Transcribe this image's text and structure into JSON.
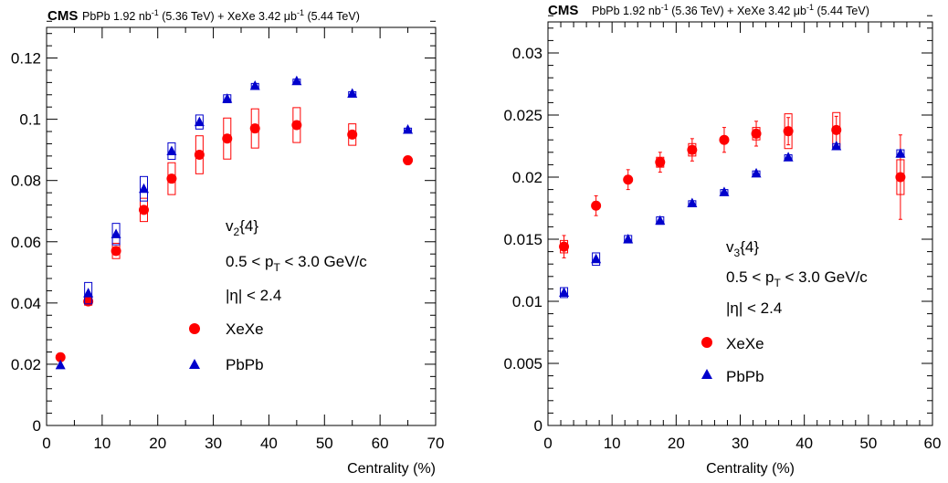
{
  "chart_data": [
    {
      "type": "scatter",
      "header": {
        "experiment": "CMS",
        "text": "PbPb 1.92 nb-1 (5.36 TeV) + XeXe 3.42 μb-1 (5.44 TeV)",
        "pb_lumi": "PbPb 1.92 nb",
        "pb_energy": " (5.36 TeV) + XeXe 3.42 ",
        "xe_unit": "μb",
        "xe_energy": " (5.44 TeV)",
        "exp": "-1"
      },
      "xlabel": "Centrality (%)",
      "ylabel": "",
      "xlim": [
        0,
        70
      ],
      "ylim": [
        0,
        0.13
      ],
      "xticks": [
        0,
        10,
        20,
        30,
        40,
        50,
        60,
        70
      ],
      "xtick_labels": [
        "0",
        "10",
        "20",
        "30",
        "40",
        "50",
        "60",
        "70"
      ],
      "yticks": [
        0,
        0.02,
        0.04,
        0.06,
        0.08,
        0.1,
        0.12
      ],
      "ytick_labels": [
        "0",
        "0.02",
        "0.04",
        "0.06",
        "0.08",
        "0.1",
        "0.12"
      ],
      "annotations": {
        "observable": "v2{4}",
        "observable_base": "v",
        "observable_sub": "2",
        "observable_rest": "{4}",
        "pt_cut": "0.5 < pT < 3.0 GeV/c",
        "pt_pre": "0.5 < p",
        "pt_sub": "T",
        "pt_post": " < 3.0 GeV/c",
        "eta_cut": "|η| < 2.4"
      },
      "legend": [
        {
          "label": "XeXe",
          "marker": "circle",
          "color": "#ff0000"
        },
        {
          "label": "PbPb",
          "marker": "triangle",
          "color": "#0000cc"
        }
      ],
      "series": [
        {
          "name": "XeXe",
          "color": "#ff0000",
          "marker": "circle",
          "x": [
            2.5,
            7.5,
            12.5,
            17.5,
            22.5,
            27.5,
            32.5,
            37.5,
            45,
            55,
            65
          ],
          "y": [
            0.0223,
            0.0405,
            0.057,
            0.0704,
            0.0806,
            0.0884,
            0.0937,
            0.097,
            0.0981,
            0.095,
            0.0866
          ],
          "sys": [
            0,
            0.0012,
            0.0025,
            0.0038,
            0.0052,
            0.0062,
            0.0067,
            0.0064,
            0.0057,
            0.0035,
            0
          ],
          "stat": [
            0,
            0,
            0,
            0,
            0,
            0,
            0,
            0,
            0,
            0,
            0
          ]
        },
        {
          "name": "PbPb",
          "color": "#0000cc",
          "marker": "triangle",
          "x": [
            2.5,
            7.5,
            12.5,
            17.5,
            22.5,
            27.5,
            32.5,
            37.5,
            45,
            55,
            65
          ],
          "y": [
            0.0197,
            0.0432,
            0.0625,
            0.0773,
            0.0896,
            0.0991,
            0.1067,
            0.1109,
            0.1125,
            0.1084,
            0.0966
          ],
          "sys": [
            0,
            0.0035,
            0.0035,
            0.004,
            0.0027,
            0.0023,
            0.0013,
            0.0008,
            0.0006,
            0.0006,
            0.0005
          ],
          "stat": [
            0,
            0,
            0,
            0,
            0,
            0,
            0,
            0,
            0,
            0,
            0
          ]
        }
      ]
    },
    {
      "type": "scatter",
      "header": {
        "experiment": "CMS",
        "text": "PbPb 1.92 nb-1 (5.36 TeV) + XeXe 3.42 μb-1 (5.44 TeV)",
        "pb_lumi": "PbPb 1.92 nb",
        "pb_energy": " (5.36 TeV) + XeXe 3.42 ",
        "xe_unit": "μb",
        "xe_energy": " (5.44 TeV)",
        "exp": "-1"
      },
      "xlabel": "Centrality (%)",
      "ylabel": "",
      "xlim": [
        0,
        60
      ],
      "ylim": [
        0,
        0.0325
      ],
      "xticks": [
        0,
        10,
        20,
        30,
        40,
        50,
        60
      ],
      "xtick_labels": [
        "0",
        "10",
        "20",
        "30",
        "40",
        "50",
        "60"
      ],
      "yticks": [
        0,
        0.005,
        0.01,
        0.015,
        0.02,
        0.025,
        0.03
      ],
      "ytick_labels": [
        "0",
        "0.005",
        "0.01",
        "0.015",
        "0.02",
        "0.025",
        "0.03"
      ],
      "annotations": {
        "observable": "v3{4}",
        "observable_base": "v",
        "observable_sub": "3",
        "observable_rest": "{4}",
        "pt_cut": "0.5 < pT < 3.0 GeV/c",
        "pt_pre": "0.5 < p",
        "pt_sub": "T",
        "pt_post": " < 3.0 GeV/c",
        "eta_cut": "|η| < 2.4"
      },
      "legend": [
        {
          "label": "XeXe",
          "marker": "circle",
          "color": "#ff0000"
        },
        {
          "label": "PbPb",
          "marker": "triangle",
          "color": "#0000cc"
        }
      ],
      "series": [
        {
          "name": "XeXe",
          "color": "#ff0000",
          "marker": "circle",
          "x": [
            2.5,
            7.5,
            12.5,
            17.5,
            22.5,
            27.5,
            32.5,
            37.5,
            45,
            55
          ],
          "y": [
            0.0144,
            0.0177,
            0.0198,
            0.0212,
            0.0222,
            0.023,
            0.0235,
            0.0237,
            0.0238,
            0.02
          ],
          "sys": [
            0.0005,
            0,
            0,
            0.0004,
            0.0005,
            0,
            0.0005,
            0.0014,
            0.0014,
            0.0014
          ],
          "stat": [
            0.0009,
            0.0008,
            0.0008,
            0.0008,
            0.0009,
            0.001,
            0.001,
            0.0011,
            0.0011,
            0.0034
          ]
        },
        {
          "name": "PbPb",
          "color": "#0000cc",
          "marker": "triangle",
          "x": [
            2.5,
            7.5,
            12.5,
            17.5,
            22.5,
            27.5,
            32.5,
            37.5,
            45,
            55
          ],
          "y": [
            0.0107,
            0.0134,
            0.015,
            0.0165,
            0.0179,
            0.0188,
            0.0203,
            0.0216,
            0.0225,
            0.0219
          ],
          "sys": [
            0.0004,
            0.0005,
            0.0003,
            0.0003,
            0.0002,
            0.0002,
            0.0002,
            0.0002,
            0.0002,
            0.0003
          ],
          "stat": [
            0,
            0,
            0,
            0,
            0,
            0,
            0,
            0,
            0,
            0
          ]
        }
      ]
    }
  ]
}
